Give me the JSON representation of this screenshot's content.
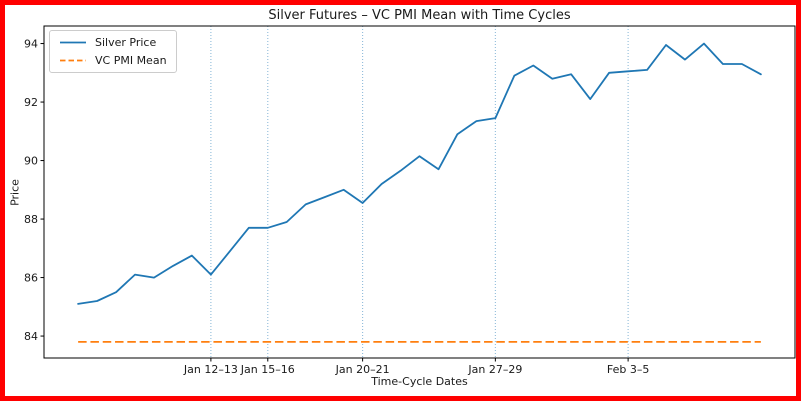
{
  "window": {
    "border_color": "#ff0000",
    "background": "#ffffff"
  },
  "chart_data": {
    "type": "line",
    "title": "Silver Futures – VC PMI Mean with Time Cycles",
    "xlabel": "Time-Cycle Dates",
    "ylabel": "Price",
    "ylim": [
      83.25,
      94.6
    ],
    "x_index_range": [
      -1.8,
      37.8
    ],
    "grid": false,
    "legend_position": "upper left",
    "yticks": [
      84,
      86,
      88,
      90,
      92,
      94
    ],
    "xticks": [
      {
        "index": 7,
        "label": "Jan 12–13"
      },
      {
        "index": 10,
        "label": "Jan 15–16"
      },
      {
        "index": 15,
        "label": "Jan 20–21"
      },
      {
        "index": 22,
        "label": "Jan 27–29"
      },
      {
        "index": 29,
        "label": "Feb 3–5"
      }
    ],
    "series": [
      {
        "name": "Silver Price",
        "color": "#1f77b4",
        "style": "solid",
        "values": [
          85.1,
          85.2,
          85.5,
          86.1,
          86.0,
          86.4,
          86.75,
          86.1,
          86.9,
          87.7,
          87.7,
          87.9,
          88.5,
          88.75,
          89.0,
          88.55,
          89.2,
          89.65,
          90.15,
          89.7,
          90.9,
          91.35,
          91.45,
          92.9,
          93.25,
          92.8,
          92.95,
          92.1,
          93.0,
          93.05,
          93.1,
          93.95,
          93.45,
          94.0,
          93.3,
          93.3,
          92.95
        ]
      },
      {
        "name": "VC PMI Mean",
        "color": "#ff7f0e",
        "style": "dashed",
        "value": 83.8
      }
    ],
    "time_cycles": {
      "color": "#8fbbda",
      "style": "dotted",
      "indices": [
        7,
        10,
        15,
        22,
        29
      ]
    }
  }
}
